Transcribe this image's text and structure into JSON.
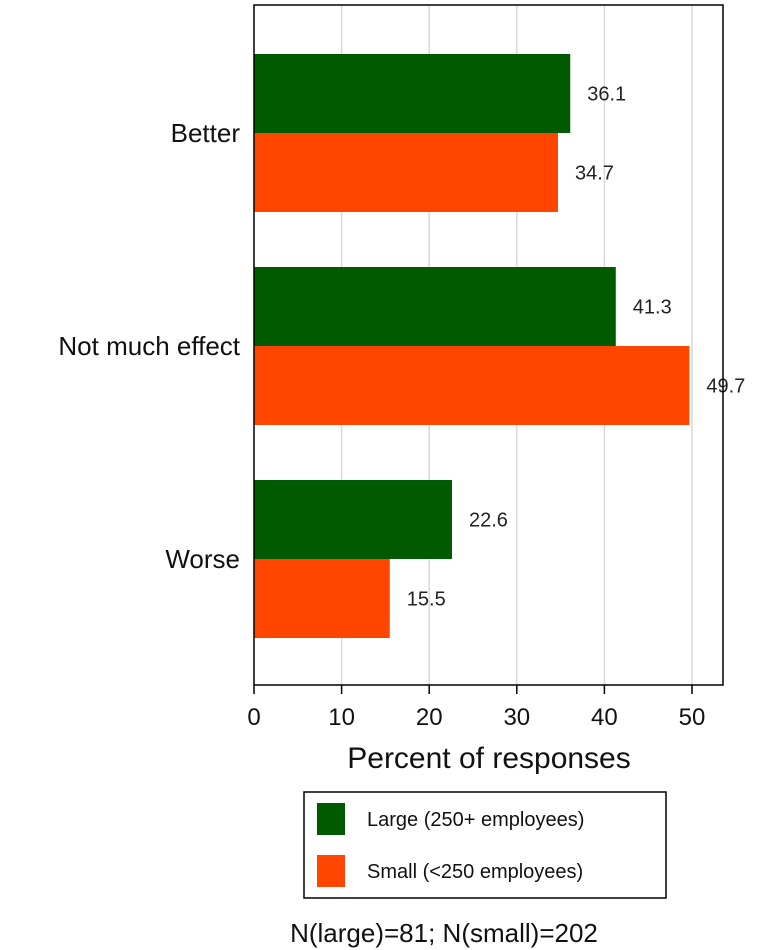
{
  "chart_data": {
    "type": "bar",
    "orientation": "horizontal",
    "categories": [
      "Better",
      "Not much effect",
      "Worse"
    ],
    "series": [
      {
        "name": "Large (250+ employees)",
        "color": "#005a00",
        "values": [
          36.1,
          41.3,
          22.6
        ]
      },
      {
        "name": "Small (<250 employees)",
        "color": "#ff4500",
        "values": [
          34.7,
          49.7,
          15.5
        ]
      }
    ],
    "xlabel": "Percent of responses",
    "ylabel": "",
    "xlim": [
      0,
      53.5
    ],
    "xticks": [
      0,
      10,
      20,
      30,
      40,
      50
    ],
    "grid": true,
    "legend_position": "bottom",
    "note": "N(large)=81; N(small)=202"
  }
}
